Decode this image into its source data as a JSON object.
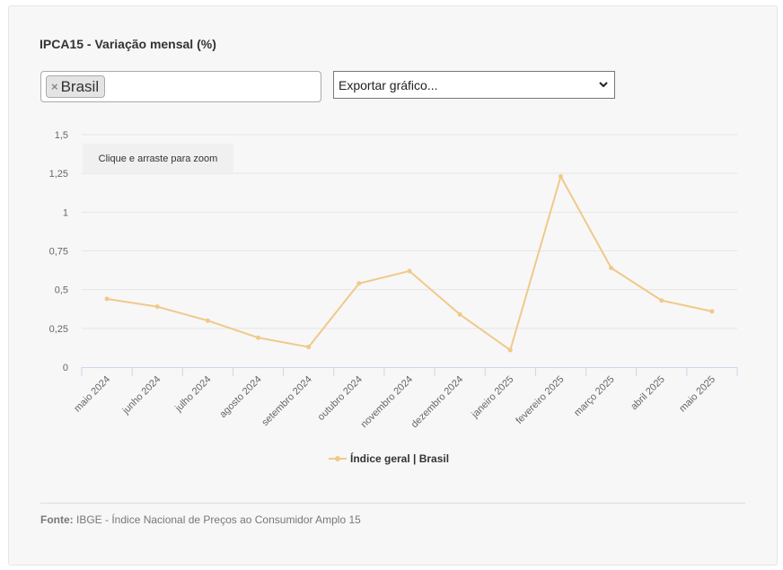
{
  "title": "IPCA15 - Variação mensal (%)",
  "filter": {
    "chip_label": "Brasil",
    "remove_symbol": "×"
  },
  "export": {
    "label": "Exportar gráfico..."
  },
  "zoom_hint": "Clique e arraste para zoom",
  "source": {
    "label": "Fonte:",
    "text": "IBGE - Índice Nacional de Preços ao Consumidor Amplo 15"
  },
  "colors": {
    "series": "#f0c98a",
    "grid": "#e6e6e6",
    "axis": "#ccd6eb"
  },
  "chart_data": {
    "type": "line",
    "title": "IPCA15 - Variação mensal (%)",
    "categories": [
      "maio 2024",
      "junho 2024",
      "julho 2024",
      "agosto 2024",
      "setembro 2024",
      "outubro 2024",
      "novembro 2024",
      "dezembro 2024",
      "janeiro 2025",
      "fevereiro 2025",
      "março 2025",
      "abril 2025",
      "maio 2025"
    ],
    "series": [
      {
        "name": "Índice geral | Brasil",
        "values": [
          0.44,
          0.39,
          0.3,
          0.19,
          0.13,
          0.54,
          0.62,
          0.34,
          0.11,
          1.23,
          0.64,
          0.43,
          0.36
        ]
      }
    ],
    "yticks": [
      "0",
      "0,25",
      "0,5",
      "0,75",
      "1",
      "1,25",
      "1,5"
    ],
    "ylim": [
      0,
      1.5
    ],
    "grid": true,
    "legend_position": "bottom-center"
  }
}
